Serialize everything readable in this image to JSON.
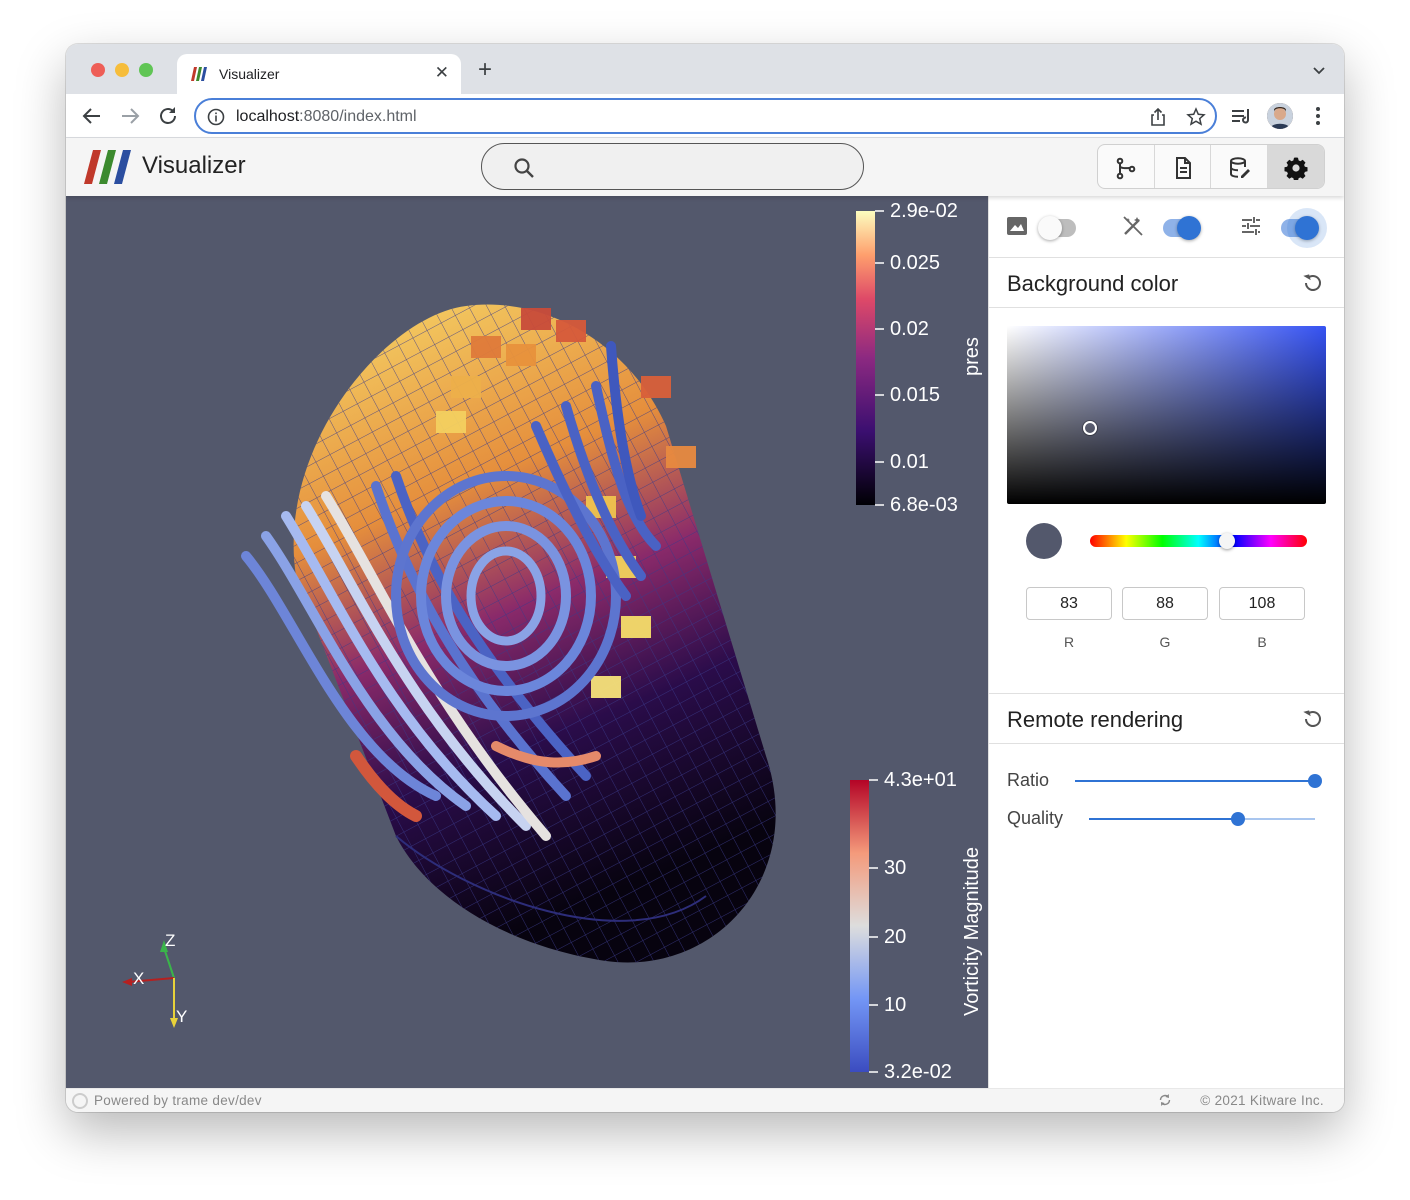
{
  "browser": {
    "tab_title": "Visualizer",
    "url_host": "localhost",
    "url_path": ":8080/index.html"
  },
  "app": {
    "title": "Visualizer",
    "search": {
      "placeholder": "",
      "value": ""
    },
    "toolbar_icons": [
      "pipeline-icon",
      "file-icon",
      "database-icon",
      "settings-icon"
    ],
    "active_toolbar": "settings-icon"
  },
  "viewport": {
    "background_color": "#53586c",
    "pres_colorbar": {
      "title": "pres",
      "ticks": [
        "2.9e-02",
        "0.025",
        "0.02",
        "0.015",
        "0.01",
        "6.8e-03"
      ]
    },
    "vorticity_colorbar": {
      "title": "Vorticity Magnitude",
      "ticks": [
        "4.3e+01",
        "30",
        "20",
        "10",
        "3.2e-02"
      ]
    },
    "axes": {
      "x": "X",
      "y": "Y",
      "z": "Z"
    }
  },
  "panel": {
    "toggles": [
      {
        "icon": "image-icon",
        "on": false
      },
      {
        "icon": "auto-fix-icon",
        "on": true
      },
      {
        "icon": "tune-icon",
        "on": true
      }
    ],
    "background": {
      "title": "Background color",
      "r": "83",
      "g": "88",
      "b": "108",
      "r_label": "R",
      "g_label": "G",
      "b_label": "B",
      "hue_position": 0.63
    },
    "remote": {
      "title": "Remote rendering",
      "ratio_label": "Ratio",
      "ratio_value": 1.0,
      "quality_label": "Quality",
      "quality_value": 0.66
    }
  },
  "footer": {
    "left": "Powered by trame dev/dev",
    "right": "© 2021 Kitware Inc."
  }
}
